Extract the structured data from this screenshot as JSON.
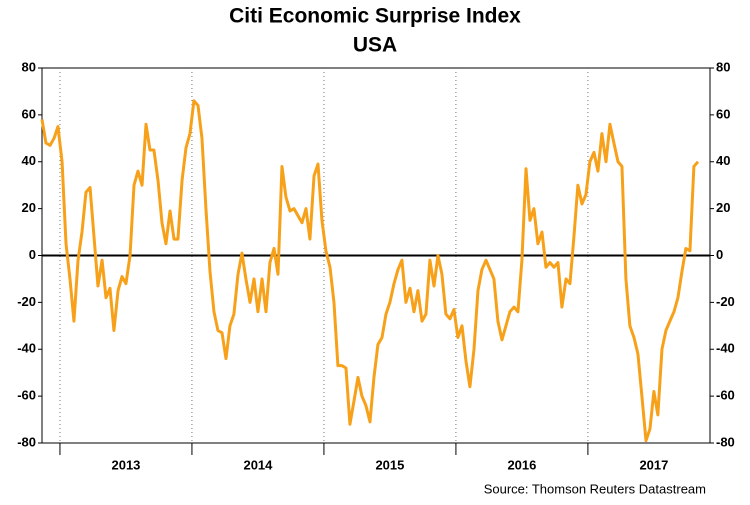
{
  "chart_data": {
    "type": "line",
    "title": "Citi Economic Surprise Index",
    "subtitle": "USA",
    "source": "Source: Thomson Reuters Datastream",
    "color": "#f7a11a",
    "x": [
      2012.864,
      2012.894,
      2012.925,
      2012.955,
      2012.985,
      2013.016,
      2013.046,
      2013.076,
      2013.106,
      2013.137,
      2013.167,
      2013.197,
      2013.228,
      2013.258,
      2013.288,
      2013.319,
      2013.349,
      2013.379,
      2013.409,
      2013.44,
      2013.47,
      2013.5,
      2013.531,
      2013.561,
      2013.591,
      2013.622,
      2013.652,
      2013.682,
      2013.712,
      2013.743,
      2013.773,
      2013.803,
      2013.834,
      2013.864,
      2013.894,
      2013.925,
      2013.955,
      2013.985,
      2014.015,
      2014.046,
      2014.076,
      2014.106,
      2014.137,
      2014.167,
      2014.197,
      2014.228,
      2014.258,
      2014.288,
      2014.318,
      2014.349,
      2014.379,
      2014.409,
      2014.44,
      2014.47,
      2014.5,
      2014.531,
      2014.561,
      2014.591,
      2014.622,
      2014.652,
      2014.682,
      2014.712,
      2014.743,
      2014.773,
      2014.803,
      2014.834,
      2014.864,
      2014.894,
      2014.925,
      2014.955,
      2014.985,
      2015.015,
      2015.046,
      2015.076,
      2015.106,
      2015.137,
      2015.167,
      2015.197,
      2015.228,
      2015.258,
      2015.288,
      2015.318,
      2015.349,
      2015.379,
      2015.409,
      2015.44,
      2015.47,
      2015.5,
      2015.531,
      2015.561,
      2015.591,
      2015.621,
      2015.652,
      2015.682,
      2015.712,
      2015.743,
      2015.773,
      2015.803,
      2015.834,
      2015.864,
      2015.894,
      2015.924,
      2015.955,
      2015.985,
      2016.015,
      2016.046,
      2016.076,
      2016.106,
      2016.137,
      2016.167,
      2016.197,
      2016.228,
      2016.258,
      2016.288,
      2016.318,
      2016.349,
      2016.379,
      2016.409,
      2016.44,
      2016.47,
      2016.5,
      2016.531,
      2016.561,
      2016.591,
      2016.621,
      2016.652,
      2016.682,
      2016.712,
      2016.743,
      2016.773,
      2016.803,
      2016.834,
      2016.864,
      2016.894,
      2016.924,
      2016.955,
      2016.985,
      2017.015,
      2017.046,
      2017.076,
      2017.106,
      2017.137,
      2017.167,
      2017.197,
      2017.228,
      2017.258,
      2017.288,
      2017.318,
      2017.349,
      2017.379,
      2017.409,
      2017.44,
      2017.47,
      2017.5,
      2017.53,
      2017.561,
      2017.591,
      2017.621,
      2017.652,
      2017.682,
      2017.712,
      2017.742,
      2017.773,
      2017.803,
      2017.834
    ],
    "values": [
      58,
      48,
      47,
      50,
      55,
      40,
      5,
      -10,
      -28,
      -2,
      10,
      27,
      29,
      8,
      -13,
      -2,
      -18,
      -14,
      -32,
      -15,
      -9,
      -12,
      0,
      30,
      36,
      30,
      56,
      45,
      45,
      32,
      14,
      5,
      19,
      7,
      7,
      32,
      46,
      52,
      66,
      64,
      50,
      20,
      -7,
      -24,
      -32,
      -33,
      -44,
      -30,
      -25,
      -8,
      1,
      -10,
      -20,
      -10,
      -24,
      -10,
      -24,
      -3,
      3,
      -8,
      38,
      25,
      19,
      20,
      17,
      14,
      20,
      7,
      34,
      39,
      15,
      2,
      -5,
      -20,
      -47,
      -47,
      -48,
      -72,
      -62,
      -52,
      -60,
      -64,
      -71,
      -52,
      -38,
      -35,
      -25,
      -20,
      -12,
      -6,
      -2,
      -20,
      -14,
      -24,
      -15,
      -28,
      -25,
      -2,
      -13,
      0,
      -8,
      -25,
      -27,
      -23,
      -35,
      -30,
      -45,
      -56,
      -40,
      -15,
      -6,
      -2,
      -6,
      -10,
      -28,
      -36,
      -30,
      -24,
      -22,
      -24,
      -2,
      37,
      15,
      20,
      5,
      10,
      -5,
      -3,
      -5,
      -3,
      -22,
      -10,
      -12,
      8,
      30,
      22,
      26,
      40,
      44,
      36,
      52,
      40,
      56,
      48,
      40,
      38,
      -10,
      -30,
      -35,
      -42,
      -60,
      -79,
      -74,
      -58,
      -68,
      -40,
      -32,
      -28,
      -24,
      -18,
      -7,
      3,
      2,
      38,
      40
    ],
    "xlim": [
      2012.864,
      2017.925
    ],
    "xticks": [
      {
        "value": 2013.5,
        "label": "2013"
      },
      {
        "value": 2014.5,
        "label": "2014"
      },
      {
        "value": 2015.5,
        "label": "2015"
      },
      {
        "value": 2016.5,
        "label": "2016"
      },
      {
        "value": 2017.5,
        "label": "2017"
      }
    ],
    "xgrid": [
      2013,
      2014,
      2015,
      2016,
      2017
    ],
    "ylim": [
      -80,
      80
    ],
    "yticks": [
      -80,
      -60,
      -40,
      -20,
      0,
      20,
      40,
      60,
      80
    ],
    "y2lim": [
      -80,
      80
    ],
    "y2ticks": [
      -80,
      -60,
      -40,
      -20,
      0,
      20,
      40,
      60,
      80
    ]
  }
}
